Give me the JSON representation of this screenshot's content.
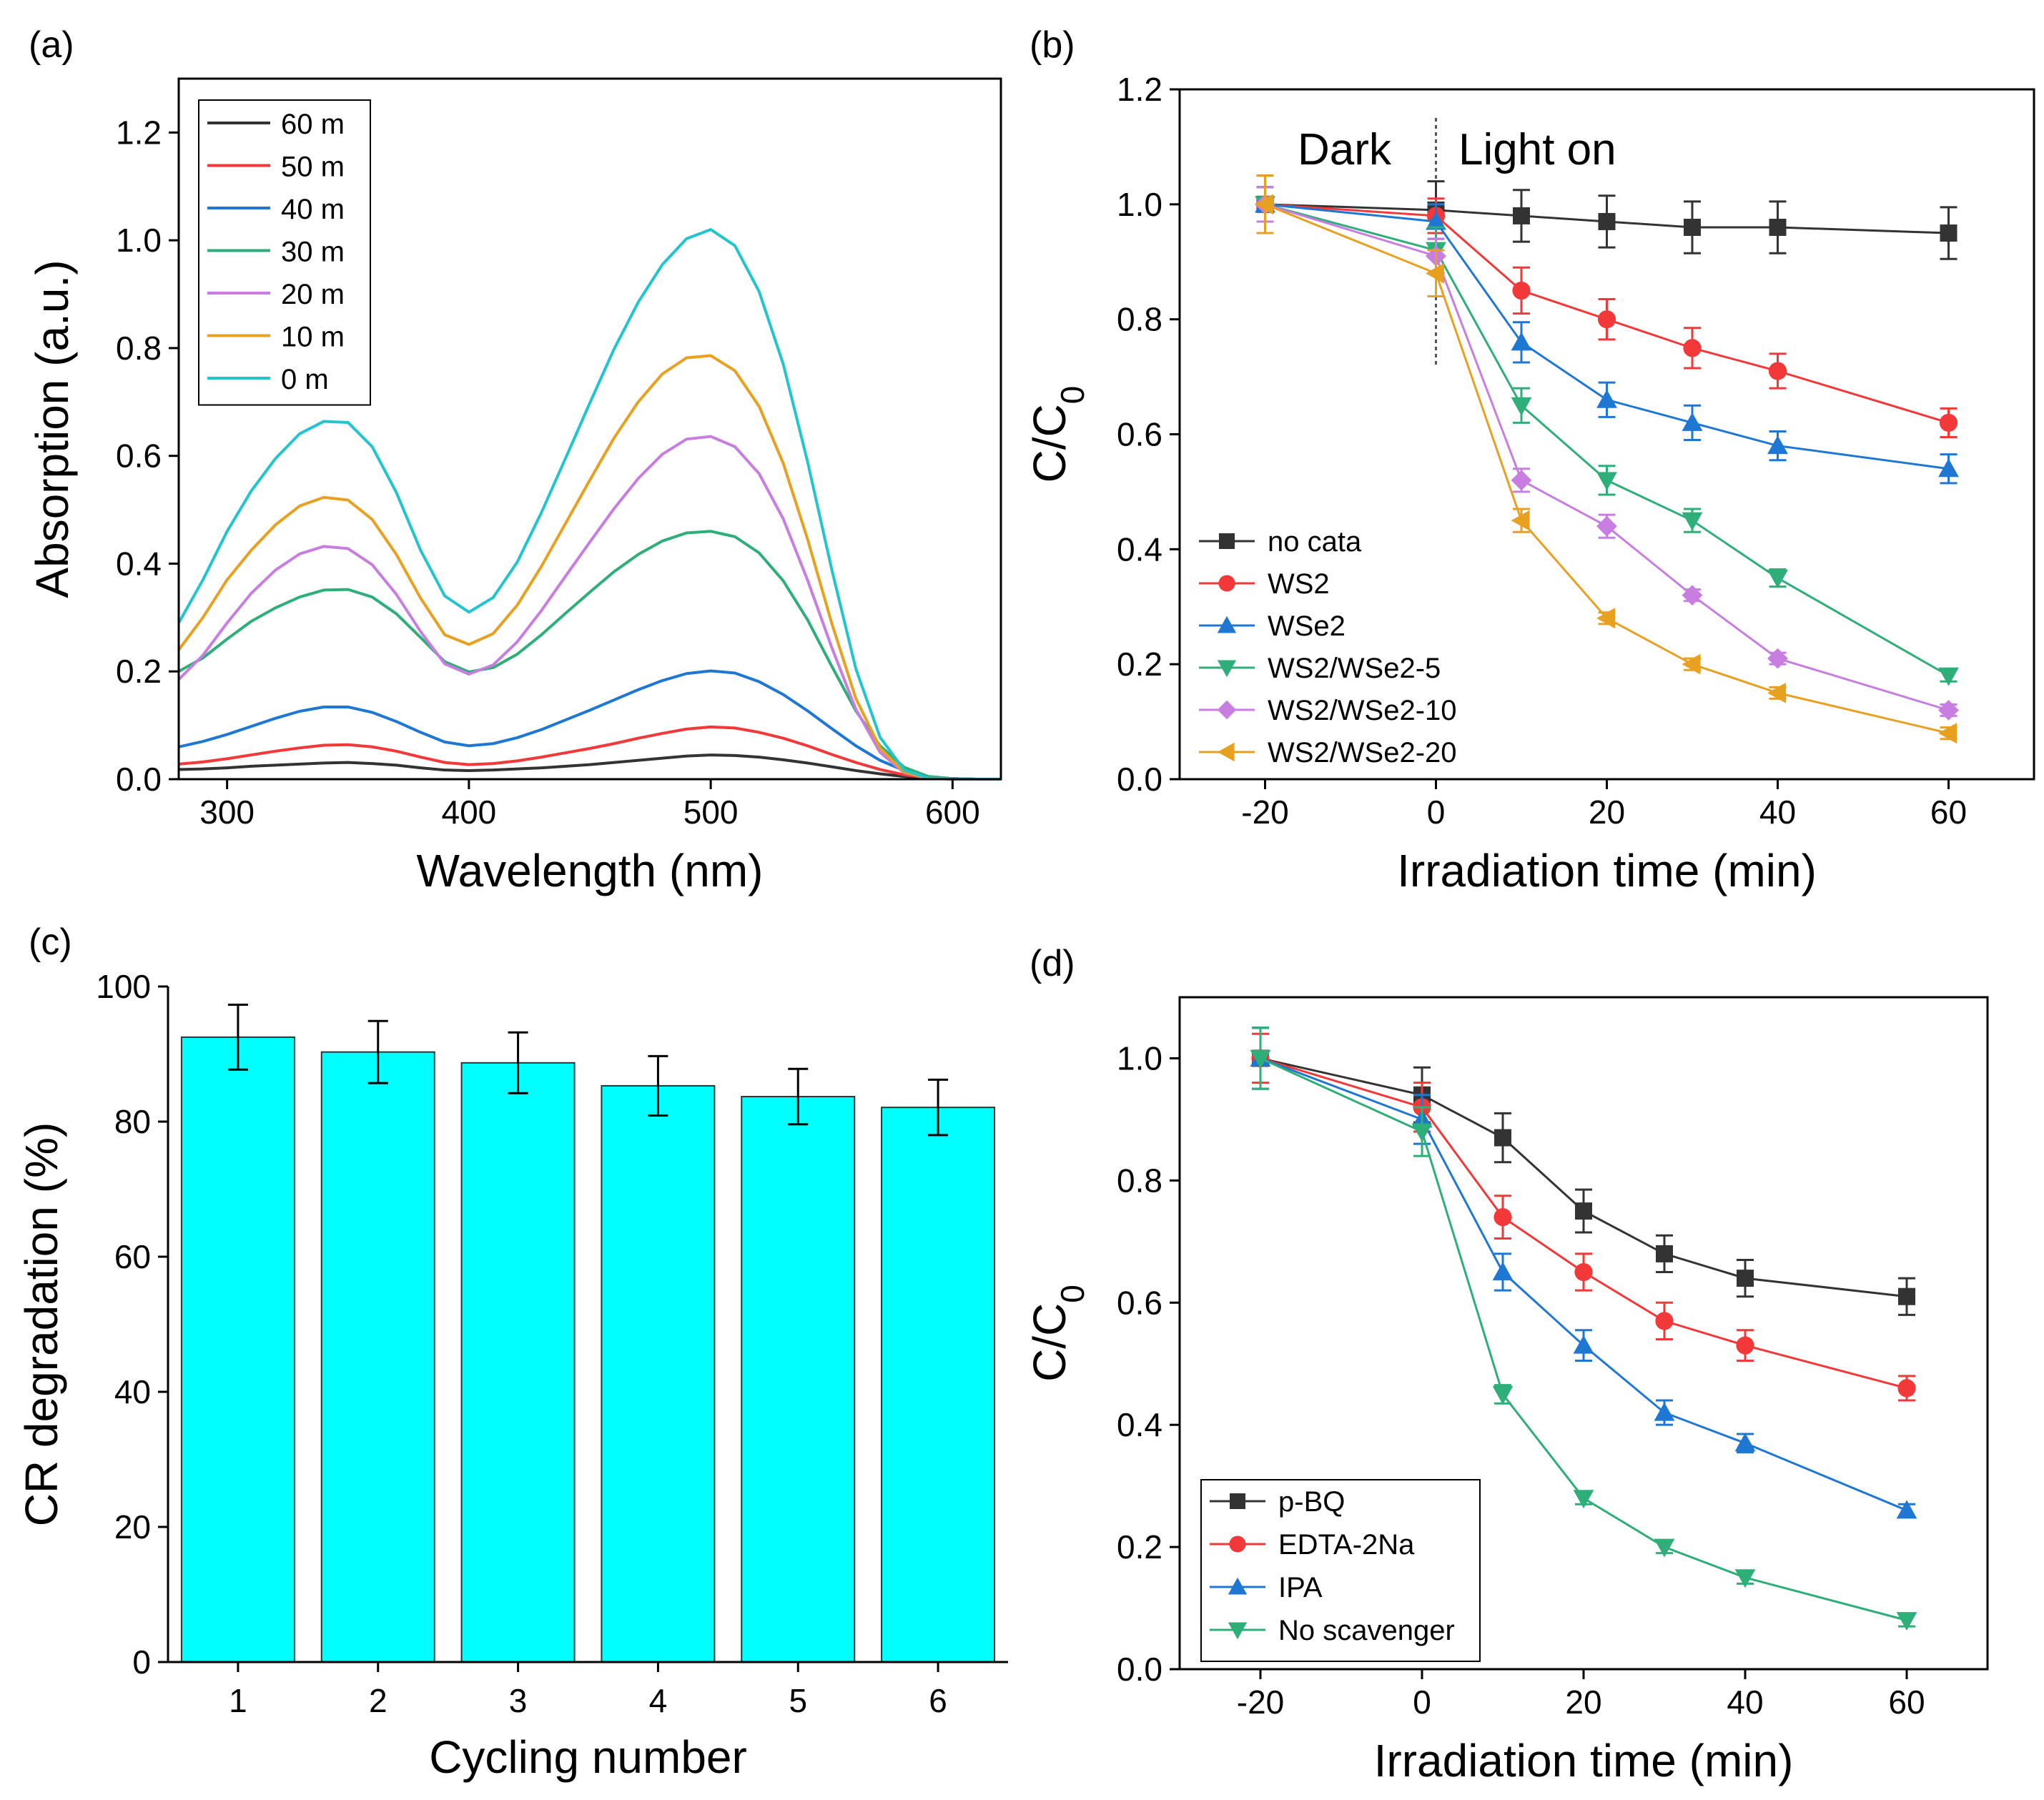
{
  "panels": {
    "a": {
      "label": "(a)"
    },
    "b": {
      "label": "(b)"
    },
    "c": {
      "label": "(c)"
    },
    "d": {
      "label": "(d)"
    }
  },
  "chart_data": [
    {
      "id": "a",
      "type": "line",
      "title": "",
      "xlabel": "Wavelength (nm)",
      "ylabel": "Absorption (a.u.)",
      "xlim": [
        280,
        620
      ],
      "ylim": [
        0.0,
        1.3
      ],
      "xticks": [
        300,
        400,
        500,
        600
      ],
      "yticks": [
        0.0,
        0.2,
        0.4,
        0.6,
        0.8,
        1.0,
        1.2
      ],
      "ytick_labels": [
        "0.0",
        "0.2",
        "0.4",
        "0.6",
        "0.8",
        "1.0",
        "1.2"
      ],
      "legend_position": "top-left",
      "x": [
        280,
        290,
        300,
        310,
        320,
        330,
        340,
        350,
        360,
        370,
        380,
        390,
        400,
        410,
        420,
        430,
        440,
        450,
        460,
        470,
        480,
        490,
        500,
        510,
        520,
        530,
        540,
        550,
        560,
        570,
        580,
        590,
        600,
        610,
        620
      ],
      "series": [
        {
          "name": "60 m",
          "color": "#333333",
          "values": [
            0.018,
            0.019,
            0.021,
            0.024,
            0.026,
            0.028,
            0.03,
            0.031,
            0.029,
            0.026,
            0.021,
            0.017,
            0.016,
            0.017,
            0.019,
            0.021,
            0.024,
            0.027,
            0.031,
            0.035,
            0.039,
            0.043,
            0.045,
            0.044,
            0.041,
            0.036,
            0.03,
            0.023,
            0.016,
            0.01,
            0.005,
            0.002,
            0.001,
            0.0,
            0.0
          ]
        },
        {
          "name": "50 m",
          "color": "#f23838",
          "values": [
            0.028,
            0.032,
            0.038,
            0.045,
            0.052,
            0.058,
            0.063,
            0.064,
            0.06,
            0.052,
            0.041,
            0.031,
            0.027,
            0.029,
            0.034,
            0.041,
            0.049,
            0.057,
            0.066,
            0.076,
            0.085,
            0.093,
            0.097,
            0.095,
            0.087,
            0.076,
            0.062,
            0.046,
            0.031,
            0.018,
            0.008,
            0.003,
            0.001,
            0.0,
            0.0
          ]
        },
        {
          "name": "40 m",
          "color": "#1f77d4",
          "values": [
            0.06,
            0.07,
            0.083,
            0.098,
            0.113,
            0.126,
            0.134,
            0.134,
            0.124,
            0.107,
            0.087,
            0.069,
            0.062,
            0.066,
            0.077,
            0.092,
            0.11,
            0.128,
            0.147,
            0.166,
            0.183,
            0.196,
            0.201,
            0.197,
            0.181,
            0.157,
            0.127,
            0.094,
            0.062,
            0.035,
            0.016,
            0.005,
            0.001,
            0.0,
            0.0
          ]
        },
        {
          "name": "30 m",
          "color": "#2eae78",
          "values": [
            0.2,
            0.225,
            0.26,
            0.293,
            0.318,
            0.338,
            0.351,
            0.352,
            0.338,
            0.307,
            0.263,
            0.218,
            0.199,
            0.207,
            0.232,
            0.268,
            0.308,
            0.347,
            0.385,
            0.417,
            0.442,
            0.457,
            0.46,
            0.45,
            0.42,
            0.368,
            0.296,
            0.21,
            0.127,
            0.062,
            0.022,
            0.005,
            0.001,
            0.0,
            0.0
          ]
        },
        {
          "name": "20 m",
          "color": "#c77ee0",
          "values": [
            0.185,
            0.23,
            0.29,
            0.345,
            0.388,
            0.418,
            0.432,
            0.428,
            0.398,
            0.343,
            0.274,
            0.214,
            0.195,
            0.212,
            0.255,
            0.313,
            0.377,
            0.44,
            0.502,
            0.558,
            0.603,
            0.631,
            0.636,
            0.617,
            0.567,
            0.483,
            0.37,
            0.245,
            0.13,
            0.05,
            0.012,
            0.002,
            0.0,
            0.0,
            0.0
          ]
        },
        {
          "name": "10 m",
          "color": "#e8a020",
          "values": [
            0.24,
            0.3,
            0.37,
            0.425,
            0.472,
            0.507,
            0.523,
            0.518,
            0.482,
            0.417,
            0.336,
            0.268,
            0.25,
            0.27,
            0.323,
            0.395,
            0.475,
            0.555,
            0.633,
            0.7,
            0.752,
            0.782,
            0.786,
            0.758,
            0.692,
            0.586,
            0.446,
            0.29,
            0.15,
            0.058,
            0.013,
            0.002,
            0.0,
            0.0,
            0.0
          ]
        },
        {
          "name": "0 m",
          "color": "#22c5cf",
          "values": [
            0.29,
            0.37,
            0.46,
            0.535,
            0.595,
            0.641,
            0.664,
            0.662,
            0.617,
            0.532,
            0.425,
            0.34,
            0.31,
            0.337,
            0.403,
            0.495,
            0.596,
            0.698,
            0.798,
            0.885,
            0.955,
            1.003,
            1.02,
            0.99,
            0.905,
            0.77,
            0.59,
            0.39,
            0.205,
            0.078,
            0.017,
            0.002,
            0.0,
            0.0,
            0.0
          ]
        }
      ]
    },
    {
      "id": "b",
      "type": "line",
      "title": "",
      "xlabel": "Irradiation time (min)",
      "ylabel": "C/C0",
      "xlim": [
        -30,
        70
      ],
      "ylim": [
        0.0,
        1.2
      ],
      "xticks": [
        -20,
        0,
        20,
        40,
        60
      ],
      "yticks": [
        0.0,
        0.2,
        0.4,
        0.6,
        0.8,
        1.0,
        1.2
      ],
      "ytick_labels": [
        "0.0",
        "0.2",
        "0.4",
        "0.6",
        "0.8",
        "1.0",
        "1.2"
      ],
      "legend_position": "bottom-left",
      "annotations": [
        "Dark",
        "Light on"
      ],
      "divider_x": 0,
      "x": [
        -20,
        0,
        10,
        20,
        30,
        40,
        60
      ],
      "series": [
        {
          "name": "no cata",
          "color": "#333333",
          "marker": "square",
          "values": [
            1.0,
            0.99,
            0.98,
            0.97,
            0.96,
            0.96,
            0.95
          ],
          "errors": [
            0.05,
            0.05,
            0.045,
            0.045,
            0.045,
            0.045,
            0.045
          ]
        },
        {
          "name": "WS2",
          "color": "#f23838",
          "marker": "circle",
          "values": [
            1.0,
            0.98,
            0.85,
            0.8,
            0.75,
            0.71,
            0.62
          ],
          "errors": [
            0.03,
            0.03,
            0.04,
            0.035,
            0.035,
            0.03,
            0.025
          ]
        },
        {
          "name": "WSe2",
          "color": "#1f77d4",
          "marker": "triangle-up",
          "values": [
            1.0,
            0.97,
            0.76,
            0.66,
            0.62,
            0.58,
            0.54
          ],
          "errors": [
            0.03,
            0.03,
            0.035,
            0.03,
            0.03,
            0.025,
            0.025
          ]
        },
        {
          "name": "WS2/WSe2-5",
          "color": "#2eae78",
          "marker": "triangle-down",
          "values": [
            1.0,
            0.92,
            0.65,
            0.52,
            0.45,
            0.35,
            0.18
          ],
          "errors": [
            0.03,
            0.04,
            0.03,
            0.025,
            0.02,
            0.015,
            0.01
          ]
        },
        {
          "name": "WS2/WSe2-10",
          "color": "#c77ee0",
          "marker": "diamond",
          "values": [
            1.0,
            0.91,
            0.52,
            0.44,
            0.32,
            0.21,
            0.12
          ],
          "errors": [
            0.03,
            0.03,
            0.02,
            0.02,
            0.01,
            0.01,
            0.01
          ]
        },
        {
          "name": "WS2/WSe2-20",
          "color": "#e8a020",
          "marker": "triangle-left",
          "values": [
            1.0,
            0.88,
            0.45,
            0.28,
            0.2,
            0.15,
            0.08
          ],
          "errors": [
            0.05,
            0.04,
            0.02,
            0.01,
            0.01,
            0.01,
            0.01
          ]
        }
      ]
    },
    {
      "id": "c",
      "type": "bar",
      "title": "",
      "xlabel": "Cycling number",
      "ylabel": "CR degradation (%)",
      "ylim": [
        0,
        100
      ],
      "yticks": [
        0,
        20,
        40,
        60,
        80,
        100
      ],
      "categories": [
        "1",
        "2",
        "3",
        "4",
        "5",
        "6"
      ],
      "values": [
        92.5,
        90.3,
        88.7,
        85.3,
        83.7,
        82.1
      ],
      "errors": [
        4.8,
        4.6,
        4.5,
        4.4,
        4.1,
        4.1
      ],
      "color": "#00ffff"
    },
    {
      "id": "d",
      "type": "line",
      "title": "",
      "xlabel": "Irradiation time (min)",
      "ylabel": "C/C0",
      "xlim": [
        -30,
        70
      ],
      "ylim": [
        0.0,
        1.1
      ],
      "xticks": [
        -20,
        0,
        20,
        40,
        60
      ],
      "yticks": [
        0.0,
        0.2,
        0.4,
        0.6,
        0.8,
        1.0
      ],
      "ytick_labels": [
        "0.0",
        "0.2",
        "0.4",
        "0.6",
        "0.8",
        "1.0"
      ],
      "legend_position": "bottom-left",
      "x": [
        -20,
        0,
        10,
        20,
        30,
        40,
        60
      ],
      "series": [
        {
          "name": "p-BQ",
          "color": "#333333",
          "marker": "square",
          "values": [
            1.0,
            0.94,
            0.87,
            0.75,
            0.68,
            0.64,
            0.61
          ],
          "errors": [
            0.05,
            0.045,
            0.04,
            0.035,
            0.03,
            0.03,
            0.03
          ]
        },
        {
          "name": "EDTA-2Na",
          "color": "#f23838",
          "marker": "circle",
          "values": [
            1.0,
            0.92,
            0.74,
            0.65,
            0.57,
            0.53,
            0.46
          ],
          "errors": [
            0.04,
            0.04,
            0.035,
            0.03,
            0.03,
            0.025,
            0.02
          ]
        },
        {
          "name": "IPA",
          "color": "#1f77d4",
          "marker": "triangle-up",
          "values": [
            1.0,
            0.9,
            0.65,
            0.53,
            0.42,
            0.37,
            0.26
          ],
          "errors": [
            0.05,
            0.04,
            0.03,
            0.025,
            0.02,
            0.015,
            0.01
          ]
        },
        {
          "name": "No scavenger",
          "color": "#2eae78",
          "marker": "triangle-down",
          "values": [
            1.0,
            0.88,
            0.45,
            0.28,
            0.2,
            0.15,
            0.08
          ],
          "errors": [
            0.05,
            0.04,
            0.015,
            0.01,
            0.01,
            0.01,
            0.01
          ]
        }
      ]
    }
  ]
}
